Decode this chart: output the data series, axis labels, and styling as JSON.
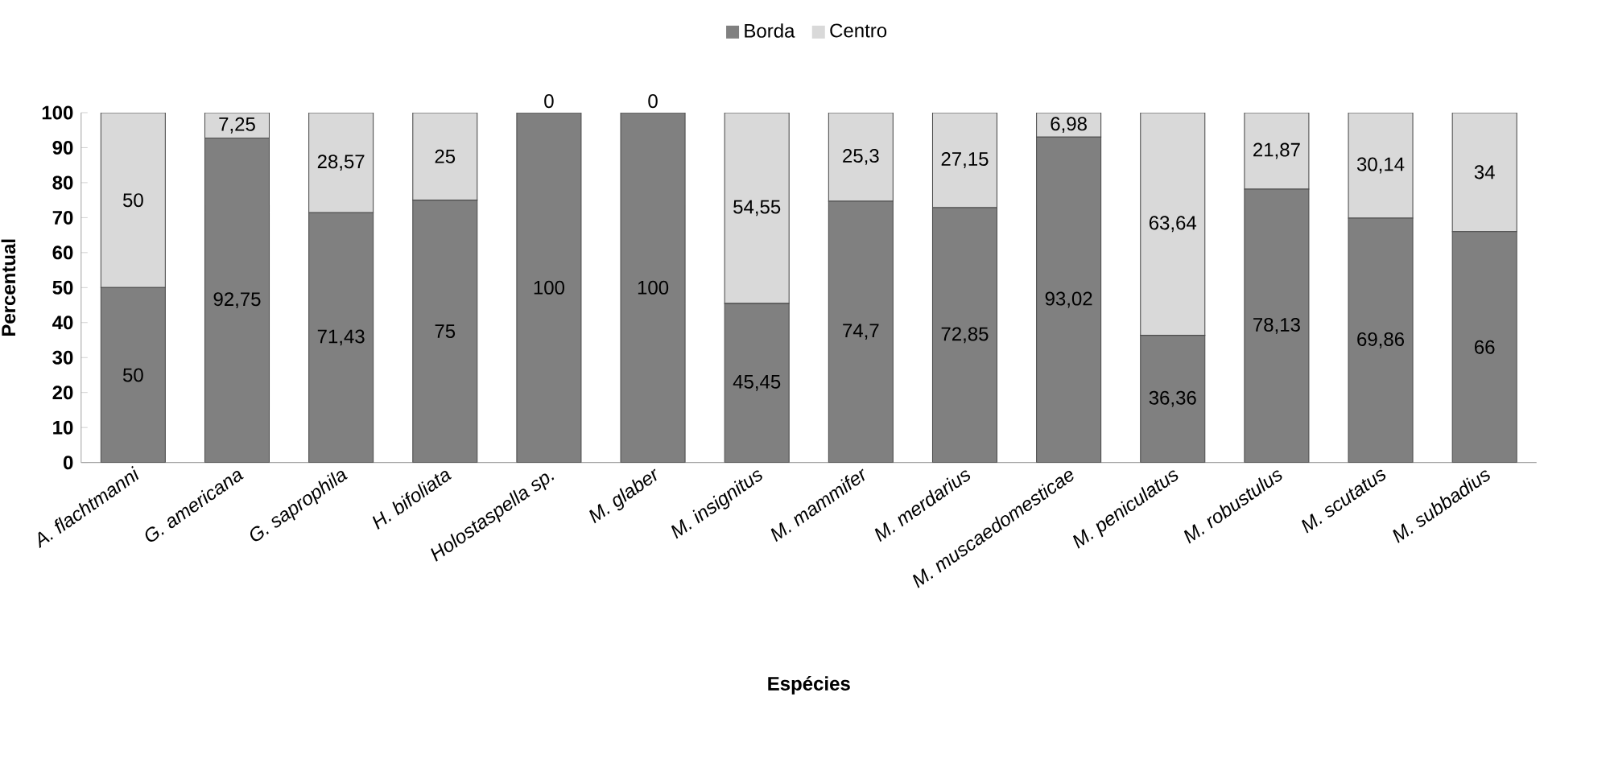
{
  "chart_data": {
    "type": "bar",
    "stacked": true,
    "xlabel": "Espécies",
    "ylabel": "Percentual",
    "categories": [
      "A. flachtmanni",
      "G. americana",
      "G. saprophila",
      "H. bifoliata",
      "Holostaspella sp.",
      "M. glaber",
      "M. insignitus",
      "M. mammifer",
      "M. merdarius",
      "M. muscaedomesticae",
      "M. peniculatus",
      "M. robustulus",
      "M. scutatus",
      "M. subbadius"
    ],
    "series": [
      {
        "name": "Borda",
        "color": "#808080",
        "values": [
          50,
          92.75,
          71.43,
          75,
          100,
          100,
          45.45,
          74.7,
          72.85,
          93.02,
          36.36,
          78.13,
          69.86,
          66
        ],
        "value_labels": [
          "50",
          "92,75",
          "71,43",
          "75",
          "100",
          "100",
          "45,45",
          "74,7",
          "72,85",
          "93,02",
          "36,36",
          "78,13",
          "69,86",
          "66"
        ]
      },
      {
        "name": "Centro",
        "color": "#d9d9d9",
        "values": [
          50,
          7.25,
          28.57,
          25,
          0,
          0,
          54.55,
          25.3,
          27.15,
          6.98,
          63.64,
          21.87,
          30.14,
          34
        ],
        "value_labels": [
          "50",
          "7,25",
          "28,57",
          "25",
          "0",
          "0",
          "54,55",
          "25,3",
          "27,15",
          "6,98",
          "63,64",
          "21,87",
          "30,14",
          "34"
        ]
      }
    ],
    "ylim": [
      0,
      100
    ],
    "yticks": [
      0,
      10,
      20,
      30,
      40,
      50,
      60,
      70,
      80,
      90,
      100
    ],
    "legend": "top"
  }
}
